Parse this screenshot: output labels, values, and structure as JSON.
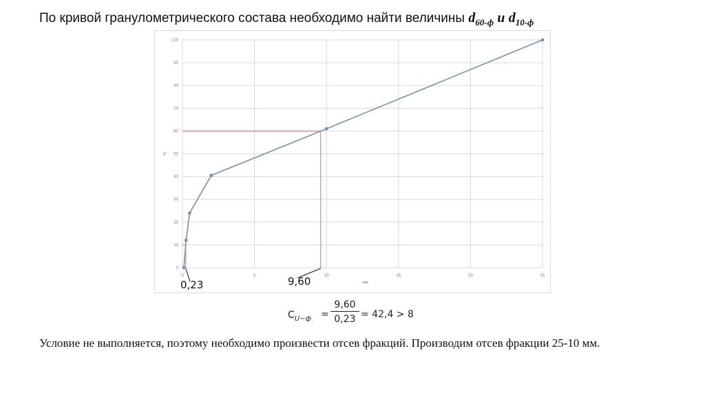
{
  "title": {
    "text": "По кривой гранулометрического состава необходимо найти величины",
    "symbol": "d",
    "sub1": "60-ф",
    "conjunction": "и",
    "sub2": "10-ф"
  },
  "chart_data": {
    "type": "line",
    "xlabel": "мм",
    "ylabel": "%",
    "xlim": [
      0,
      25
    ],
    "ylim": [
      0,
      100
    ],
    "x_ticks": [
      "0",
      "5",
      "10",
      "15",
      "20",
      "25"
    ],
    "y_ticks": [
      "0",
      "10",
      "20",
      "30",
      "40",
      "50",
      "60",
      "70",
      "80",
      "90",
      "100"
    ],
    "grid": true,
    "series": [
      {
        "color": "#6d93b8",
        "x": [
          0.1,
          0.25,
          0.5,
          2,
          10,
          25
        ],
        "y": [
          0,
          12,
          24,
          40.5,
          61,
          100
        ]
      }
    ],
    "guides": [
      {
        "color": "#e06c6c",
        "y": 60,
        "x": 9.6
      },
      {
        "color": "#e06c6c",
        "y": 10,
        "x": 0.23
      }
    ],
    "annotations": [
      {
        "text": "0,23",
        "x": 0.23
      },
      {
        "text": "9,60",
        "x": 9.6
      }
    ]
  },
  "formula": {
    "symbol": "C",
    "subscript": "U−ф",
    "eq": "=",
    "numerator": "9,60",
    "denominator": "0,23",
    "result": "= 42,4 > 8"
  },
  "conclusion": "Условие не выполняется, поэтому необходимо произвести отсев фракций. Производим отсев фракции 25-10 мм."
}
